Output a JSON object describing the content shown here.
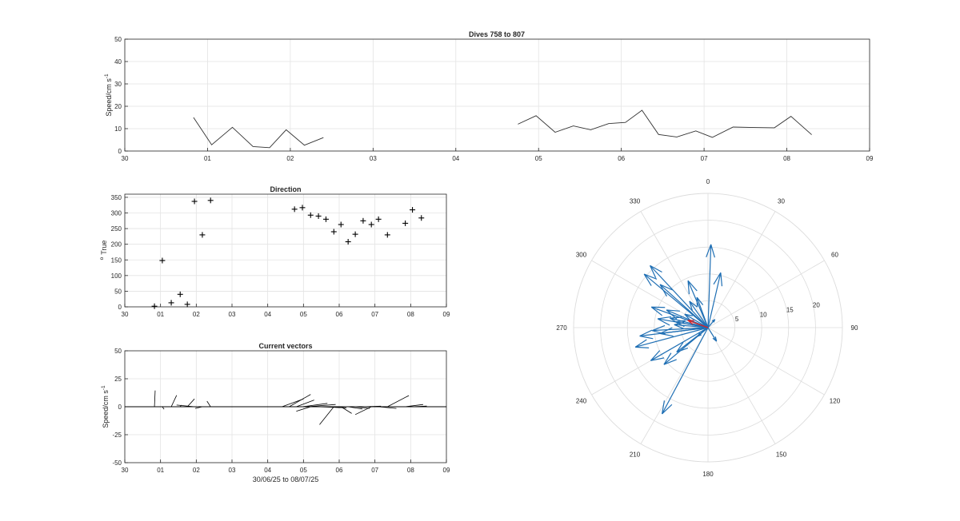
{
  "chart_data": [
    {
      "type": "line",
      "title": "Dives 758 to 807",
      "xlabel": "",
      "ylabel": "Speed/cm s",
      "ylabel_superscript": "-1",
      "xlim": [
        0,
        9
      ],
      "ylim": [
        0,
        50
      ],
      "xtick_labels": [
        "30",
        "01",
        "02",
        "03",
        "04",
        "05",
        "06",
        "07",
        "08",
        "09"
      ],
      "yticks": [
        0,
        10,
        20,
        30,
        40,
        50
      ],
      "grid": true,
      "series": [
        {
          "segments": [
            [
              [
                0.83,
                15
              ],
              [
                1.05,
                2.8
              ],
              [
                1.3,
                10.6
              ],
              [
                1.55,
                2
              ],
              [
                1.75,
                1.5
              ],
              [
                1.95,
                9.5
              ],
              [
                2.17,
                2.6
              ],
              [
                2.4,
                6
              ]
            ],
            [
              [
                4.75,
                12
              ],
              [
                4.97,
                15.8
              ],
              [
                5.2,
                8.4
              ],
              [
                5.42,
                11.2
              ],
              [
                5.63,
                9.5
              ],
              [
                5.85,
                12.3
              ],
              [
                6.05,
                12.8
              ],
              [
                6.25,
                18.2
              ],
              [
                6.45,
                7.4
              ],
              [
                6.67,
                6.3
              ],
              [
                6.9,
                9
              ],
              [
                7.1,
                6.1
              ],
              [
                7.35,
                10.7
              ],
              [
                7.6,
                10.5
              ],
              [
                7.85,
                10.4
              ],
              [
                8.05,
                15.5
              ],
              [
                8.3,
                7.3
              ]
            ]
          ]
        }
      ],
      "color": "#000000"
    },
    {
      "type": "scatter",
      "title": "Direction",
      "xlabel": "",
      "ylabel": "True",
      "ylabel_prefix": "o",
      "xlim": [
        0,
        9
      ],
      "ylim": [
        0,
        360
      ],
      "xtick_labels": [
        "30",
        "01",
        "02",
        "03",
        "04",
        "05",
        "06",
        "07",
        "08",
        "09"
      ],
      "yticks": [
        0,
        50,
        100,
        150,
        200,
        250,
        300,
        350
      ],
      "grid": true,
      "marker": "+",
      "points": [
        [
          0.83,
          2
        ],
        [
          1.05,
          148
        ],
        [
          1.3,
          13
        ],
        [
          1.55,
          40
        ],
        [
          1.75,
          8
        ],
        [
          1.95,
          337
        ],
        [
          2.17,
          230
        ],
        [
          2.4,
          340
        ],
        [
          4.75,
          312
        ],
        [
          4.97,
          317
        ],
        [
          5.2,
          293
        ],
        [
          5.42,
          290
        ],
        [
          5.63,
          280
        ],
        [
          5.85,
          240
        ],
        [
          6.05,
          263
        ],
        [
          6.25,
          208
        ],
        [
          6.45,
          232
        ],
        [
          6.67,
          275
        ],
        [
          6.9,
          263
        ],
        [
          7.1,
          280
        ],
        [
          7.35,
          230
        ],
        [
          7.85,
          267
        ],
        [
          8.05,
          310
        ],
        [
          8.3,
          284
        ]
      ]
    },
    {
      "type": "line",
      "subtype": "stick-vectors",
      "title": "Current vectors",
      "xlabel": "30/06/25 to 08/07/25",
      "ylabel": "Speed/cm s",
      "ylabel_superscript": "-1",
      "xlim": [
        0,
        9
      ],
      "ylim": [
        -50,
        50
      ],
      "xtick_labels": [
        "30",
        "01",
        "02",
        "03",
        "04",
        "05",
        "06",
        "07",
        "08",
        "09"
      ],
      "yticks": [
        -50,
        -25,
        0,
        25,
        50
      ],
      "grid": true,
      "vectors": [
        {
          "t": 0.83,
          "dx": 0.02,
          "dy": 14.5
        },
        {
          "t": 1.05,
          "dx": 0.05,
          "dy": -2.2
        },
        {
          "t": 1.3,
          "dx": 0.15,
          "dy": 10.2
        },
        {
          "t": 1.55,
          "dx": 0.03,
          "dy": 1.5
        },
        {
          "t": 1.75,
          "dx": 0.2,
          "dy": 7
        },
        {
          "t": 1.95,
          "dx": -0.5,
          "dy": 1.5
        },
        {
          "t": 2.17,
          "dx": -0.2,
          "dy": -1.5
        },
        {
          "t": 2.4,
          "dx": -0.1,
          "dy": 5
        },
        {
          "t": 4.4,
          "dx": 0.6,
          "dy": 7
        },
        {
          "t": 4.6,
          "dx": 0.6,
          "dy": 11
        },
        {
          "t": 4.8,
          "dx": 0.5,
          "dy": 6
        },
        {
          "t": 4.97,
          "dx": 0.7,
          "dy": 3
        },
        {
          "t": 5.1,
          "dx": 0.8,
          "dy": 2
        },
        {
          "t": 5.2,
          "dx": -0.4,
          "dy": -4
        },
        {
          "t": 5.4,
          "dx": 0.8,
          "dy": -1
        },
        {
          "t": 5.6,
          "dx": 0.6,
          "dy": -1
        },
        {
          "t": 5.85,
          "dx": -0.4,
          "dy": -16
        },
        {
          "t": 6.05,
          "dx": 0.3,
          "dy": -6
        },
        {
          "t": 6.25,
          "dx": 0.4,
          "dy": -2
        },
        {
          "t": 6.45,
          "dx": 0.4,
          "dy": -1.5
        },
        {
          "t": 6.67,
          "dx": 0.5,
          "dy": 0.5
        },
        {
          "t": 6.9,
          "dx": -0.45,
          "dy": -7
        },
        {
          "t": 7.1,
          "dx": 0.5,
          "dy": -1.5
        },
        {
          "t": 7.35,
          "dx": 0.6,
          "dy": 10
        },
        {
          "t": 7.85,
          "dx": 0.5,
          "dy": 2
        },
        {
          "t": 8.05,
          "dx": 0.4,
          "dy": 0.6
        }
      ]
    },
    {
      "type": "polar",
      "subtype": "compass",
      "title": "",
      "rmax": 25,
      "r_tick_labels": [
        "5",
        "10",
        "15",
        "20"
      ],
      "r_ticks": [
        5,
        10,
        15,
        20
      ],
      "angle_labels": [
        "0",
        "30",
        "60",
        "90",
        "120",
        "150",
        "180",
        "210",
        "240",
        "270",
        "300",
        "330"
      ],
      "angle_ticks": [
        0,
        30,
        60,
        90,
        120,
        150,
        180,
        210,
        240,
        270,
        300,
        330
      ],
      "arrow_color": "#1f6fb4",
      "highlight_color": "#e02020",
      "arrows": [
        {
          "dir": 2,
          "speed": 15.5
        },
        {
          "dir": 13,
          "speed": 10.5
        },
        {
          "dir": 40,
          "speed": 2
        },
        {
          "dir": 148,
          "speed": 3
        },
        {
          "dir": 337,
          "speed": 9.5
        },
        {
          "dir": 340,
          "speed": 6
        },
        {
          "dir": 230,
          "speed": 2.5
        },
        {
          "dir": 312,
          "speed": 12
        },
        {
          "dir": 317,
          "speed": 15.8
        },
        {
          "dir": 293,
          "speed": 8.4
        },
        {
          "dir": 290,
          "speed": 11.2
        },
        {
          "dir": 280,
          "speed": 9.5
        },
        {
          "dir": 240,
          "speed": 12.3
        },
        {
          "dir": 263,
          "speed": 12.8
        },
        {
          "dir": 208,
          "speed": 18.2
        },
        {
          "dir": 232,
          "speed": 7.4
        },
        {
          "dir": 275,
          "speed": 6.3
        },
        {
          "dir": 263,
          "speed": 9
        },
        {
          "dir": 280,
          "speed": 6.1
        },
        {
          "dir": 230,
          "speed": 10.7
        },
        {
          "dir": 267,
          "speed": 10.4
        },
        {
          "dir": 310,
          "speed": 15.5
        },
        {
          "dir": 284,
          "speed": 7.3
        },
        {
          "dir": 325,
          "speed": 6
        },
        {
          "dir": 300,
          "speed": 5
        },
        {
          "dir": 255,
          "speed": 14
        }
      ],
      "highlight": {
        "dir": 290,
        "speed": 4
      }
    }
  ]
}
